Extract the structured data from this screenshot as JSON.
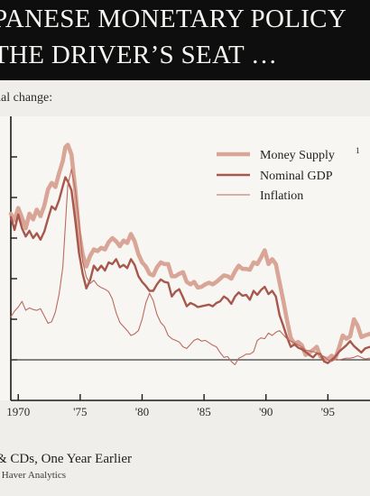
{
  "header": {
    "title_line1": "PANESE MONETARY POLICY",
    "title_line2": "THE DRIVER’S SEAT       …"
  },
  "chart_subtitle": "ual change:",
  "footnote": "& CDs, One Year Earlier",
  "source": ": Haver Analytics",
  "colors": {
    "money_supply": "#d9a596",
    "nominal_gdp": "#a7574b",
    "inflation": "#bb6b5e",
    "axis": "#1a1a1a",
    "zero_line": "#3c3c3c"
  },
  "chart_data": {
    "type": "line",
    "x_tick_labels": [
      "1970",
      "'75",
      "'80",
      "'85",
      "'90",
      "'95"
    ],
    "x_ticks": [
      1970,
      1975,
      1980,
      1985,
      1990,
      1995
    ],
    "xlim": [
      1969.4,
      1998.4
    ],
    "ylim": [
      -5,
      30
    ],
    "y_ticks": [
      0,
      5,
      10,
      15,
      20,
      25
    ],
    "zero_line": 0,
    "legend_position": "top-right",
    "legend_superscript": "1",
    "series": [
      {
        "name": "Money Supply",
        "points": [
          [
            1969.4,
            18.0
          ],
          [
            1969.7,
            17.2
          ],
          [
            1970.0,
            18.7
          ],
          [
            1970.3,
            17.5
          ],
          [
            1970.6,
            16.2
          ],
          [
            1970.9,
            18.0
          ],
          [
            1971.2,
            17.3
          ],
          [
            1971.5,
            18.5
          ],
          [
            1971.8,
            17.7
          ],
          [
            1972.1,
            19.0
          ],
          [
            1972.4,
            21.0
          ],
          [
            1972.7,
            21.8
          ],
          [
            1973.0,
            21.3
          ],
          [
            1973.3,
            23.0
          ],
          [
            1973.6,
            24.5
          ],
          [
            1973.8,
            26.2
          ],
          [
            1974.0,
            26.5
          ],
          [
            1974.3,
            25.3
          ],
          [
            1974.6,
            21.0
          ],
          [
            1974.9,
            15.8
          ],
          [
            1975.2,
            13.0
          ],
          [
            1975.5,
            11.5
          ],
          [
            1975.8,
            12.8
          ],
          [
            1976.1,
            13.6
          ],
          [
            1976.4,
            13.4
          ],
          [
            1976.7,
            13.8
          ],
          [
            1977.0,
            13.6
          ],
          [
            1977.3,
            14.5
          ],
          [
            1977.6,
            15.0
          ],
          [
            1977.9,
            14.6
          ],
          [
            1978.2,
            14.0
          ],
          [
            1978.5,
            14.7
          ],
          [
            1978.8,
            14.4
          ],
          [
            1979.1,
            15.5
          ],
          [
            1979.4,
            14.6
          ],
          [
            1979.7,
            13.0
          ],
          [
            1980.0,
            12.0
          ],
          [
            1980.3,
            11.5
          ],
          [
            1980.6,
            10.6
          ],
          [
            1980.9,
            10.4
          ],
          [
            1981.2,
            11.4
          ],
          [
            1981.5,
            12.0
          ],
          [
            1981.8,
            11.8
          ],
          [
            1982.1,
            11.8
          ],
          [
            1982.4,
            10.3
          ],
          [
            1982.7,
            10.3
          ],
          [
            1983.0,
            10.6
          ],
          [
            1983.3,
            10.8
          ],
          [
            1983.6,
            9.6
          ],
          [
            1983.9,
            9.3
          ],
          [
            1984.2,
            9.6
          ],
          [
            1984.5,
            8.9
          ],
          [
            1984.8,
            9.0
          ],
          [
            1985.1,
            9.3
          ],
          [
            1985.4,
            9.5
          ],
          [
            1985.7,
            9.3
          ],
          [
            1986.0,
            9.6
          ],
          [
            1986.3,
            10.0
          ],
          [
            1986.6,
            10.4
          ],
          [
            1986.9,
            10.3
          ],
          [
            1987.2,
            10.0
          ],
          [
            1987.5,
            10.9
          ],
          [
            1987.8,
            11.6
          ],
          [
            1988.1,
            11.2
          ],
          [
            1988.4,
            11.2
          ],
          [
            1988.7,
            11.1
          ],
          [
            1989.0,
            12.0
          ],
          [
            1989.3,
            11.8
          ],
          [
            1989.6,
            12.6
          ],
          [
            1989.9,
            13.5
          ],
          [
            1990.2,
            11.8
          ],
          [
            1990.5,
            12.4
          ],
          [
            1990.8,
            11.8
          ],
          [
            1991.1,
            9.5
          ],
          [
            1991.4,
            7.3
          ],
          [
            1991.7,
            4.9
          ],
          [
            1992.0,
            2.7
          ],
          [
            1992.3,
            2.0
          ],
          [
            1992.6,
            2.2
          ],
          [
            1992.9,
            1.8
          ],
          [
            1993.2,
            0.6
          ],
          [
            1993.5,
            0.9
          ],
          [
            1993.8,
            1.2
          ],
          [
            1994.1,
            1.6
          ],
          [
            1994.4,
            0.4
          ],
          [
            1994.7,
            0.2
          ],
          [
            1995.0,
            0.1
          ],
          [
            1995.3,
            0.5
          ],
          [
            1995.6,
            0.2
          ],
          [
            1995.9,
            1.5
          ],
          [
            1996.2,
            3.0
          ],
          [
            1996.5,
            2.6
          ],
          [
            1996.8,
            2.9
          ],
          [
            1997.1,
            5.0
          ],
          [
            1997.4,
            4.2
          ],
          [
            1997.7,
            2.8
          ],
          [
            1998.0,
            3.0
          ],
          [
            1998.4,
            3.2
          ]
        ]
      },
      {
        "name": "Nominal GDP",
        "points": [
          [
            1969.4,
            17.6
          ],
          [
            1969.7,
            16.0
          ],
          [
            1970.0,
            17.9
          ],
          [
            1970.3,
            16.2
          ],
          [
            1970.6,
            15.2
          ],
          [
            1970.9,
            15.9
          ],
          [
            1971.2,
            15.0
          ],
          [
            1971.5,
            15.6
          ],
          [
            1971.8,
            14.8
          ],
          [
            1972.1,
            15.8
          ],
          [
            1972.4,
            17.4
          ],
          [
            1972.7,
            18.9
          ],
          [
            1973.0,
            18.5
          ],
          [
            1973.3,
            19.7
          ],
          [
            1973.6,
            21.4
          ],
          [
            1973.8,
            22.5
          ],
          [
            1974.0,
            22.0
          ],
          [
            1974.3,
            20.9
          ],
          [
            1974.6,
            17.2
          ],
          [
            1974.9,
            13.2
          ],
          [
            1975.2,
            10.6
          ],
          [
            1975.5,
            8.8
          ],
          [
            1975.8,
            9.8
          ],
          [
            1976.1,
            11.6
          ],
          [
            1976.4,
            11.0
          ],
          [
            1976.7,
            11.6
          ],
          [
            1977.0,
            11.0
          ],
          [
            1977.3,
            12.0
          ],
          [
            1977.6,
            11.8
          ],
          [
            1977.9,
            12.4
          ],
          [
            1978.2,
            11.4
          ],
          [
            1978.5,
            11.7
          ],
          [
            1978.8,
            11.3
          ],
          [
            1979.1,
            12.4
          ],
          [
            1979.4,
            11.7
          ],
          [
            1979.7,
            10.3
          ],
          [
            1980.0,
            9.6
          ],
          [
            1980.3,
            9.1
          ],
          [
            1980.6,
            8.5
          ],
          [
            1980.9,
            8.5
          ],
          [
            1981.2,
            9.3
          ],
          [
            1981.5,
            9.9
          ],
          [
            1981.8,
            9.6
          ],
          [
            1982.1,
            9.5
          ],
          [
            1982.4,
            7.8
          ],
          [
            1982.7,
            8.4
          ],
          [
            1983.0,
            8.7
          ],
          [
            1983.3,
            7.7
          ],
          [
            1983.6,
            6.6
          ],
          [
            1983.9,
            7.0
          ],
          [
            1984.2,
            6.8
          ],
          [
            1984.5,
            6.5
          ],
          [
            1984.8,
            6.6
          ],
          [
            1985.1,
            6.7
          ],
          [
            1985.4,
            6.8
          ],
          [
            1985.7,
            6.6
          ],
          [
            1986.0,
            7.0
          ],
          [
            1986.3,
            7.2
          ],
          [
            1986.6,
            7.8
          ],
          [
            1986.9,
            7.5
          ],
          [
            1987.2,
            6.9
          ],
          [
            1987.5,
            7.8
          ],
          [
            1987.8,
            8.3
          ],
          [
            1988.1,
            7.9
          ],
          [
            1988.4,
            8.0
          ],
          [
            1988.7,
            7.4
          ],
          [
            1989.0,
            8.5
          ],
          [
            1989.3,
            8.0
          ],
          [
            1989.6,
            8.6
          ],
          [
            1989.9,
            9.0
          ],
          [
            1990.2,
            8.1
          ],
          [
            1990.5,
            8.5
          ],
          [
            1990.8,
            7.8
          ],
          [
            1991.1,
            5.5
          ],
          [
            1991.4,
            4.2
          ],
          [
            1991.7,
            2.8
          ],
          [
            1992.0,
            1.6
          ],
          [
            1992.3,
            1.9
          ],
          [
            1992.6,
            1.5
          ],
          [
            1992.9,
            1.3
          ],
          [
            1993.2,
            1.0
          ],
          [
            1993.5,
            0.6
          ],
          [
            1993.8,
            0.3
          ],
          [
            1994.1,
            0.8
          ],
          [
            1994.4,
            0.7
          ],
          [
            1994.7,
            -0.2
          ],
          [
            1995.0,
            -0.4
          ],
          [
            1995.3,
            0.0
          ],
          [
            1995.6,
            0.4
          ],
          [
            1995.9,
            1.0
          ],
          [
            1996.2,
            1.4
          ],
          [
            1996.5,
            1.8
          ],
          [
            1996.8,
            2.3
          ],
          [
            1997.1,
            1.7
          ],
          [
            1997.4,
            1.3
          ],
          [
            1997.7,
            0.9
          ],
          [
            1998.0,
            1.4
          ],
          [
            1998.4,
            1.6
          ]
        ]
      },
      {
        "name": "Inflation",
        "points": [
          [
            1969.4,
            5.3
          ],
          [
            1969.7,
            6.0
          ],
          [
            1970.0,
            6.5
          ],
          [
            1970.3,
            7.2
          ],
          [
            1970.6,
            6.1
          ],
          [
            1970.9,
            6.4
          ],
          [
            1971.2,
            6.2
          ],
          [
            1971.5,
            6.1
          ],
          [
            1971.8,
            6.3
          ],
          [
            1972.1,
            5.4
          ],
          [
            1972.4,
            4.5
          ],
          [
            1972.7,
            4.7
          ],
          [
            1973.0,
            5.9
          ],
          [
            1973.3,
            8.1
          ],
          [
            1973.6,
            11.4
          ],
          [
            1973.8,
            16.5
          ],
          [
            1974.0,
            21.5
          ],
          [
            1974.3,
            23.5
          ],
          [
            1974.6,
            21.0
          ],
          [
            1974.9,
            17.0
          ],
          [
            1975.2,
            12.1
          ],
          [
            1975.5,
            10.2
          ],
          [
            1975.8,
            9.4
          ],
          [
            1976.1,
            9.8
          ],
          [
            1976.4,
            9.2
          ],
          [
            1976.7,
            8.9
          ],
          [
            1977.0,
            8.7
          ],
          [
            1977.3,
            8.4
          ],
          [
            1977.6,
            7.5
          ],
          [
            1977.9,
            5.8
          ],
          [
            1978.2,
            4.6
          ],
          [
            1978.5,
            4.1
          ],
          [
            1978.8,
            3.6
          ],
          [
            1979.1,
            3.0
          ],
          [
            1979.4,
            3.2
          ],
          [
            1979.7,
            3.6
          ],
          [
            1980.0,
            5.0
          ],
          [
            1980.3,
            7.0
          ],
          [
            1980.6,
            8.2
          ],
          [
            1980.9,
            7.3
          ],
          [
            1981.2,
            5.6
          ],
          [
            1981.5,
            4.6
          ],
          [
            1981.8,
            4.1
          ],
          [
            1982.1,
            3.0
          ],
          [
            1982.4,
            2.6
          ],
          [
            1982.7,
            2.4
          ],
          [
            1983.0,
            2.2
          ],
          [
            1983.3,
            1.6
          ],
          [
            1983.6,
            1.4
          ],
          [
            1983.9,
            1.9
          ],
          [
            1984.2,
            2.4
          ],
          [
            1984.5,
            2.6
          ],
          [
            1984.8,
            2.3
          ],
          [
            1985.1,
            2.4
          ],
          [
            1985.4,
            2.1
          ],
          [
            1985.7,
            1.8
          ],
          [
            1986.0,
            1.6
          ],
          [
            1986.3,
            0.9
          ],
          [
            1986.6,
            0.3
          ],
          [
            1986.9,
            0.4
          ],
          [
            1987.2,
            -0.2
          ],
          [
            1987.5,
            -0.6
          ],
          [
            1987.8,
            0.2
          ],
          [
            1988.1,
            0.4
          ],
          [
            1988.4,
            0.7
          ],
          [
            1988.7,
            0.7
          ],
          [
            1989.0,
            1.0
          ],
          [
            1989.3,
            2.4
          ],
          [
            1989.6,
            2.7
          ],
          [
            1989.9,
            2.6
          ],
          [
            1990.2,
            3.3
          ],
          [
            1990.5,
            3.0
          ],
          [
            1990.8,
            3.4
          ],
          [
            1991.1,
            3.6
          ],
          [
            1991.4,
            3.1
          ],
          [
            1991.7,
            2.6
          ],
          [
            1992.0,
            2.3
          ],
          [
            1992.3,
            2.1
          ],
          [
            1992.6,
            1.8
          ],
          [
            1992.9,
            1.6
          ],
          [
            1993.2,
            1.2
          ],
          [
            1993.5,
            1.1
          ],
          [
            1993.8,
            1.0
          ],
          [
            1994.1,
            0.9
          ],
          [
            1994.4,
            0.6
          ],
          [
            1994.7,
            0.4
          ],
          [
            1995.0,
            0.0
          ],
          [
            1995.3,
            -0.2
          ],
          [
            1995.6,
            0.1
          ],
          [
            1995.9,
            0.0
          ],
          [
            1996.2,
            0.1
          ],
          [
            1996.5,
            0.2
          ],
          [
            1996.8,
            0.2
          ],
          [
            1997.1,
            0.3
          ],
          [
            1997.4,
            0.5
          ],
          [
            1997.7,
            0.3
          ],
          [
            1998.0,
            0.1
          ],
          [
            1998.4,
            0.2
          ]
        ]
      }
    ]
  }
}
